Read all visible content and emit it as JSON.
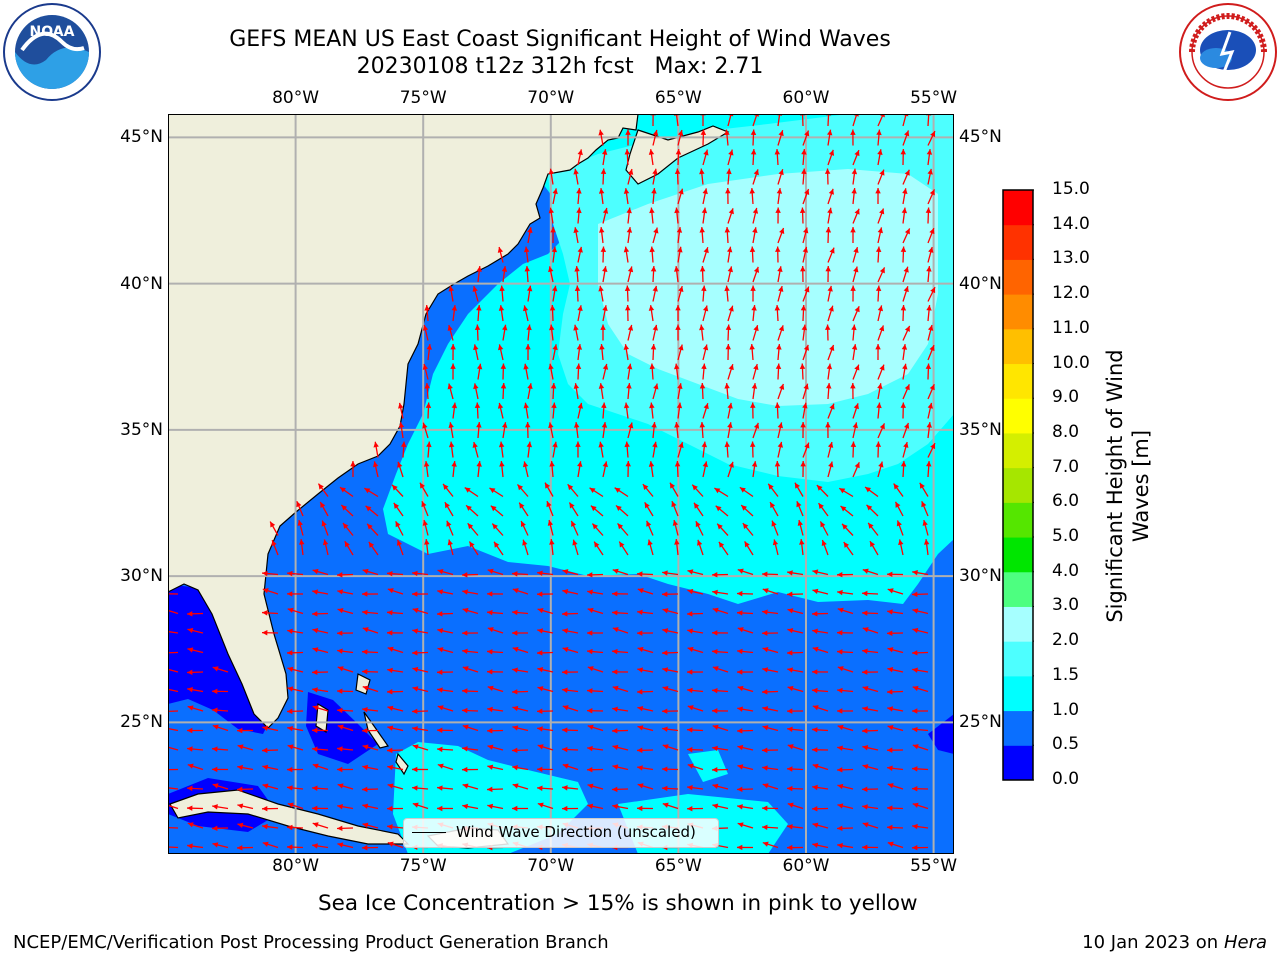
{
  "title": {
    "line1": "GEFS MEAN US East Coast Significant Height of Wind Waves",
    "line2": "20230108 t12z 312h fcst   Max: 2.71"
  },
  "logos": {
    "left": {
      "name": "NOAA",
      "ring_text": "NATIONAL OCEANIC AND ATMOSPHERIC ADMINISTRATION · U.S. DEPARTMENT OF COMMERCE"
    },
    "right": {
      "name": "NATIONAL WEATHER SERVICE"
    }
  },
  "map": {
    "lon_labels": [
      "80°W",
      "75°W",
      "70°W",
      "65°W",
      "60°W",
      "55°W"
    ],
    "lat_labels": [
      "45°N",
      "40°N",
      "35°N",
      "30°N",
      "25°N"
    ],
    "lon_values": [
      -80,
      -75,
      -70,
      -65,
      -60,
      -55
    ],
    "lat_values": [
      45,
      40,
      35,
      30,
      25
    ],
    "lon_range": [
      -85,
      -54.2
    ],
    "lat_range": [
      20.5,
      45.8
    ],
    "legend": "Wind Wave Direction (unscaled)",
    "colors": {
      "land": "#efefdc",
      "grid": "#b0b0b0",
      "arrow": "#ff0000",
      "coast": "#000000"
    }
  },
  "colorbar": {
    "title": "Significant Height of Wind Waves [m]",
    "levels": [
      "0.0",
      "0.5",
      "1.0",
      "1.5",
      "2.0",
      "3.0",
      "4.0",
      "5.0",
      "6.0",
      "7.0",
      "8.0",
      "9.0",
      "10.0",
      "11.0",
      "12.0",
      "13.0",
      "14.0",
      "15.0"
    ],
    "colors": [
      "#0000ff",
      "#0a6fff",
      "#00ffff",
      "#4dffff",
      "#a6ffff",
      "#4dff80",
      "#00e600",
      "#55e600",
      "#a6e600",
      "#d4ef00",
      "#ffff00",
      "#ffe600",
      "#ffbf00",
      "#ff8c00",
      "#ff6400",
      "#ff3200",
      "#ff0000"
    ]
  },
  "note": "Sea Ice Concentration > 15% is shown in pink to yellow",
  "footer": {
    "left": "NCEP/EMC/Verification Post Processing Product Generation Branch",
    "date": "10 Jan 2023 on ",
    "machine": "Hera"
  }
}
